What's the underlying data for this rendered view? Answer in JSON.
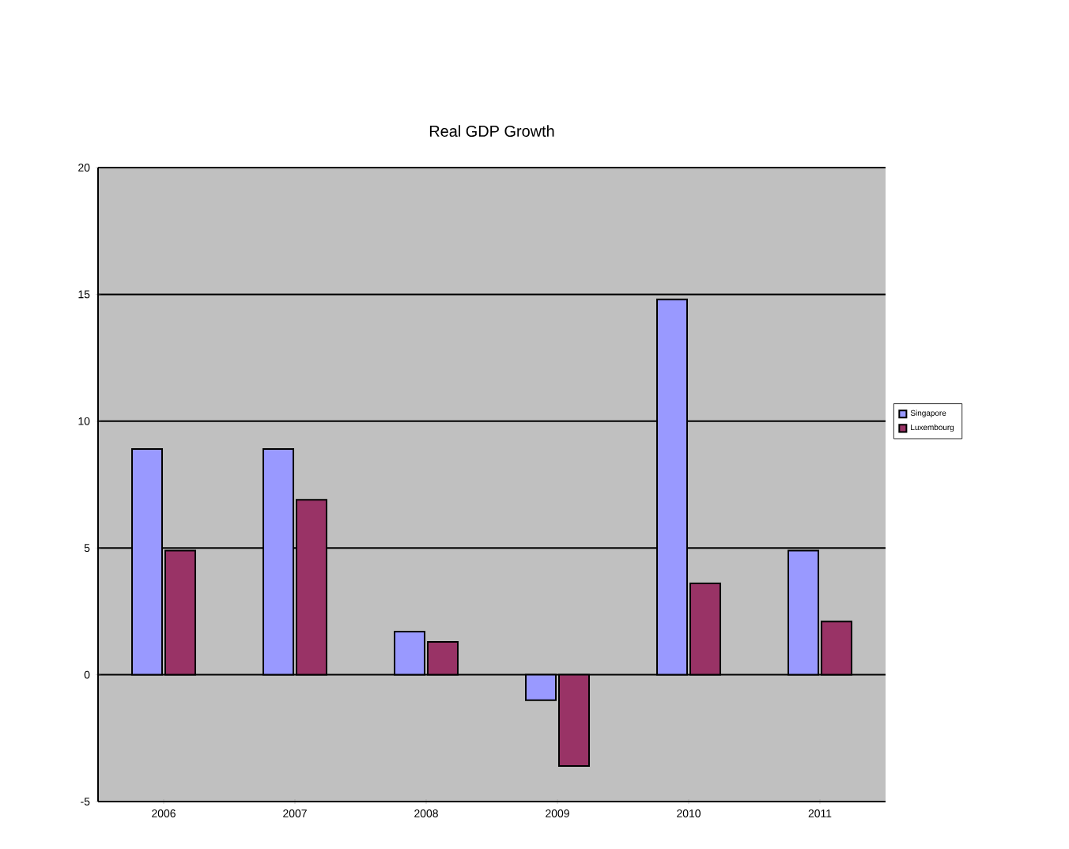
{
  "chart_data": {
    "type": "bar",
    "title": "Real GDP Growth",
    "categories": [
      "2006",
      "2007",
      "2008",
      "2009",
      "2010",
      "2011"
    ],
    "series": [
      {
        "name": "Singapore",
        "color": "#9999ff",
        "values": [
          8.9,
          8.9,
          1.7,
          -1.0,
          14.8,
          4.9
        ]
      },
      {
        "name": "Luxembourg",
        "color": "#993366",
        "values": [
          4.9,
          6.9,
          1.3,
          -3.6,
          3.6,
          2.1
        ]
      }
    ],
    "ylim": [
      -5,
      20
    ],
    "yticks": [
      -5,
      0,
      5,
      10,
      15,
      20
    ],
    "grid": "y",
    "legend": "right"
  }
}
